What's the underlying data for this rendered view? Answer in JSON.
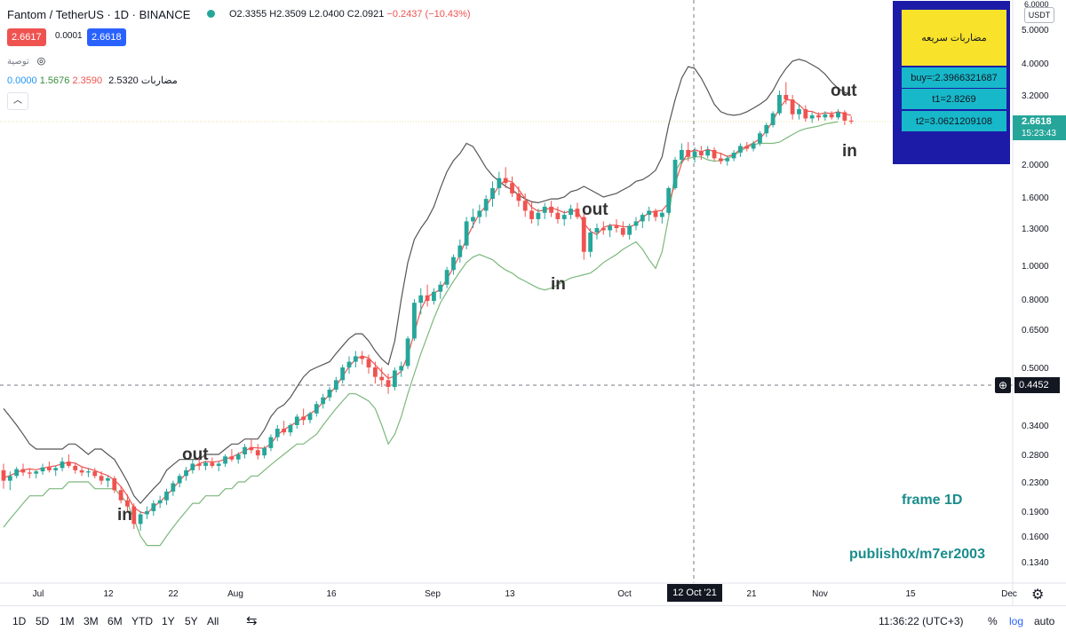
{
  "header": {
    "symbol": "Fantom / TetherUS · 1D · BINANCE",
    "ohlc_o": "O2.3355",
    "ohlc_h": "H2.3509",
    "ohlc_l": "L2.0400",
    "ohlc_c": "C2.0921",
    "ohlc_change": "−0.2437 (−10.43%)",
    "sell_price": "2.6617",
    "spread": "0.0001",
    "buy_price": "2.6618",
    "indicator1_name": "توصية",
    "indicator2_name": "مضاربات",
    "indicator2_values": [
      "2.5320",
      "2.3590",
      "1.5676",
      "0.0000"
    ]
  },
  "colors": {
    "up": "#26a69a",
    "down": "#ef5350",
    "upper_band": "#555555",
    "lower_band": "#7cb87c",
    "mid_line": "#ef5350",
    "label_text": "#1a8c8c",
    "info_bg": "#1c1ba8",
    "info_title_bg": "#f8e22a",
    "info_cell_bg": "#17b8c9",
    "buy_box": "#2962ff",
    "sell_box": "#ef5350",
    "last_price_bg": "#26a69a"
  },
  "info_table": {
    "title": "مضاربات سريعه",
    "buy": "buy=:2.3966321687",
    "t1": "t1=2.8269",
    "t2": "t2=3.0621209108"
  },
  "price_axis": {
    "currency": "USDT",
    "ticks": [
      "5.0000",
      "4.0000",
      "3.2000",
      "2.0000",
      "1.6000",
      "1.3000",
      "1.0000",
      "0.8000",
      "0.6500",
      "0.5000",
      "0.3400",
      "0.2800",
      "0.2300",
      "0.1900",
      "0.1600",
      "0.1340"
    ],
    "top_partial": "6.0000",
    "last_price": "2.6618",
    "countdown": "15:23:43",
    "crosshair_price": "0.4452"
  },
  "time_axis": {
    "ticks": [
      "Jul",
      "12",
      "22",
      "Aug",
      "16",
      "Sep",
      "13",
      "Oct",
      "21",
      "Nov",
      "15",
      "Dec"
    ],
    "crosshair_label": "12 Oct '21"
  },
  "annotations": {
    "out": "out",
    "in": "in",
    "frame": "frame 1D",
    "publish": "publish0x/m7er2003"
  },
  "bottom_toolbar": {
    "ranges": [
      "1D",
      "5D",
      "1M",
      "3M",
      "6M",
      "YTD",
      "1Y",
      "5Y",
      "All"
    ],
    "time": "11:36:22 (UTC+3)",
    "percent": "%",
    "log": "log",
    "auto": "auto"
  },
  "chart_data": {
    "type": "candlestick",
    "scale": "log",
    "ylim": [
      0.12,
      6.0
    ],
    "x_range": [
      "Jun 24",
      "Dec 01"
    ],
    "candles": [
      [
        0.25,
        0.262,
        0.22,
        0.232
      ],
      [
        0.232,
        0.248,
        0.218,
        0.24
      ],
      [
        0.24,
        0.256,
        0.236,
        0.252
      ],
      [
        0.252,
        0.262,
        0.24,
        0.246
      ],
      [
        0.246,
        0.254,
        0.236,
        0.244
      ],
      [
        0.244,
        0.25,
        0.236,
        0.248
      ],
      [
        0.248,
        0.262,
        0.242,
        0.255
      ],
      [
        0.255,
        0.266,
        0.246,
        0.25
      ],
      [
        0.25,
        0.258,
        0.24,
        0.254
      ],
      [
        0.254,
        0.274,
        0.248,
        0.266
      ],
      [
        0.266,
        0.28,
        0.254,
        0.258
      ],
      [
        0.258,
        0.264,
        0.244,
        0.25
      ],
      [
        0.25,
        0.256,
        0.24,
        0.246
      ],
      [
        0.246,
        0.254,
        0.238,
        0.248
      ],
      [
        0.248,
        0.254,
        0.236,
        0.24
      ],
      [
        0.24,
        0.248,
        0.226,
        0.232
      ],
      [
        0.232,
        0.24,
        0.222,
        0.236
      ],
      [
        0.236,
        0.24,
        0.214,
        0.218
      ],
      [
        0.218,
        0.224,
        0.2,
        0.204
      ],
      [
        0.204,
        0.212,
        0.19,
        0.196
      ],
      [
        0.196,
        0.2,
        0.168,
        0.174
      ],
      [
        0.174,
        0.19,
        0.166,
        0.186
      ],
      [
        0.186,
        0.196,
        0.18,
        0.19
      ],
      [
        0.19,
        0.204,
        0.184,
        0.2
      ],
      [
        0.2,
        0.21,
        0.194,
        0.204
      ],
      [
        0.204,
        0.22,
        0.198,
        0.216
      ],
      [
        0.216,
        0.232,
        0.21,
        0.228
      ],
      [
        0.228,
        0.244,
        0.222,
        0.24
      ],
      [
        0.24,
        0.256,
        0.232,
        0.25
      ],
      [
        0.25,
        0.27,
        0.244,
        0.262
      ],
      [
        0.262,
        0.272,
        0.25,
        0.258
      ],
      [
        0.258,
        0.268,
        0.25,
        0.264
      ],
      [
        0.264,
        0.274,
        0.254,
        0.258
      ],
      [
        0.258,
        0.266,
        0.248,
        0.262
      ],
      [
        0.262,
        0.28,
        0.256,
        0.276
      ],
      [
        0.276,
        0.29,
        0.266,
        0.27
      ],
      [
        0.27,
        0.284,
        0.262,
        0.28
      ],
      [
        0.28,
        0.3,
        0.272,
        0.294
      ],
      [
        0.294,
        0.31,
        0.282,
        0.288
      ],
      [
        0.288,
        0.3,
        0.27,
        0.278
      ],
      [
        0.278,
        0.296,
        0.272,
        0.292
      ],
      [
        0.292,
        0.32,
        0.286,
        0.314
      ],
      [
        0.314,
        0.34,
        0.306,
        0.332
      ],
      [
        0.332,
        0.35,
        0.318,
        0.324
      ],
      [
        0.324,
        0.344,
        0.316,
        0.34
      ],
      [
        0.34,
        0.366,
        0.332,
        0.36
      ],
      [
        0.36,
        0.38,
        0.34,
        0.352
      ],
      [
        0.352,
        0.372,
        0.344,
        0.368
      ],
      [
        0.368,
        0.4,
        0.36,
        0.392
      ],
      [
        0.392,
        0.42,
        0.38,
        0.41
      ],
      [
        0.41,
        0.44,
        0.4,
        0.432
      ],
      [
        0.432,
        0.47,
        0.424,
        0.46
      ],
      [
        0.46,
        0.51,
        0.45,
        0.5
      ],
      [
        0.5,
        0.54,
        0.48,
        0.52
      ],
      [
        0.52,
        0.56,
        0.5,
        0.54
      ],
      [
        0.54,
        0.56,
        0.51,
        0.53
      ],
      [
        0.53,
        0.546,
        0.48,
        0.5
      ],
      [
        0.5,
        0.52,
        0.45,
        0.47
      ],
      [
        0.47,
        0.5,
        0.44,
        0.46
      ],
      [
        0.46,
        0.48,
        0.42,
        0.44
      ],
      [
        0.44,
        0.5,
        0.43,
        0.49
      ],
      [
        0.49,
        0.52,
        0.47,
        0.505
      ],
      [
        0.505,
        0.62,
        0.495,
        0.61
      ],
      [
        0.61,
        0.8,
        0.6,
        0.78
      ],
      [
        0.78,
        0.86,
        0.72,
        0.82
      ],
      [
        0.82,
        0.88,
        0.76,
        0.79
      ],
      [
        0.79,
        0.86,
        0.77,
        0.84
      ],
      [
        0.84,
        0.9,
        0.8,
        0.88
      ],
      [
        0.88,
        0.99,
        0.86,
        0.97
      ],
      [
        0.97,
        1.08,
        0.94,
        1.06
      ],
      [
        1.06,
        1.2,
        1.02,
        1.15
      ],
      [
        1.15,
        1.4,
        1.12,
        1.36
      ],
      [
        1.36,
        1.48,
        1.3,
        1.4
      ],
      [
        1.4,
        1.52,
        1.34,
        1.46
      ],
      [
        1.46,
        1.62,
        1.4,
        1.58
      ],
      [
        1.58,
        1.78,
        1.5,
        1.7
      ],
      [
        1.7,
        1.9,
        1.62,
        1.82
      ],
      [
        1.82,
        1.96,
        1.7,
        1.76
      ],
      [
        1.76,
        1.84,
        1.6,
        1.64
      ],
      [
        1.64,
        1.72,
        1.5,
        1.56
      ],
      [
        1.56,
        1.64,
        1.4,
        1.46
      ],
      [
        1.46,
        1.56,
        1.34,
        1.38
      ],
      [
        1.38,
        1.48,
        1.32,
        1.44
      ],
      [
        1.44,
        1.54,
        1.38,
        1.5
      ],
      [
        1.5,
        1.56,
        1.4,
        1.44
      ],
      [
        1.44,
        1.5,
        1.34,
        1.38
      ],
      [
        1.38,
        1.46,
        1.32,
        1.42
      ],
      [
        1.42,
        1.52,
        1.38,
        1.48
      ],
      [
        1.48,
        1.54,
        1.38,
        1.4
      ],
      [
        1.4,
        1.44,
        1.04,
        1.1
      ],
      [
        1.1,
        1.3,
        1.06,
        1.26
      ],
      [
        1.26,
        1.34,
        1.2,
        1.3
      ],
      [
        1.3,
        1.36,
        1.24,
        1.28
      ],
      [
        1.28,
        1.34,
        1.22,
        1.32
      ],
      [
        1.32,
        1.38,
        1.26,
        1.3
      ],
      [
        1.3,
        1.36,
        1.22,
        1.24
      ],
      [
        1.24,
        1.34,
        1.2,
        1.32
      ],
      [
        1.32,
        1.4,
        1.28,
        1.36
      ],
      [
        1.36,
        1.44,
        1.3,
        1.42
      ],
      [
        1.42,
        1.5,
        1.36,
        1.46
      ],
      [
        1.46,
        1.48,
        1.36,
        1.4
      ],
      [
        1.4,
        1.46,
        1.34,
        1.44
      ],
      [
        1.44,
        1.72,
        1.42,
        1.7
      ],
      [
        1.7,
        2.1,
        1.68,
        2.06
      ],
      [
        2.06,
        2.3,
        2.0,
        2.2
      ],
      [
        2.2,
        2.32,
        2.04,
        2.1
      ],
      [
        2.1,
        2.24,
        2.02,
        2.18
      ],
      [
        2.18,
        2.26,
        2.06,
        2.12
      ],
      [
        2.12,
        2.26,
        2.08,
        2.2
      ],
      [
        2.2,
        2.24,
        2.04,
        2.08
      ],
      [
        2.08,
        2.16,
        2.0,
        2.04
      ],
      [
        2.04,
        2.12,
        1.98,
        2.08
      ],
      [
        2.08,
        2.2,
        2.04,
        2.16
      ],
      [
        2.16,
        2.3,
        2.1,
        2.26
      ],
      [
        2.26,
        2.32,
        2.18,
        2.22
      ],
      [
        2.22,
        2.34,
        2.18,
        2.3
      ],
      [
        2.3,
        2.5,
        2.26,
        2.46
      ],
      [
        2.46,
        2.64,
        2.4,
        2.6
      ],
      [
        2.6,
        2.86,
        2.56,
        2.82
      ],
      [
        2.82,
        3.3,
        2.78,
        3.2
      ],
      [
        3.2,
        3.5,
        3.0,
        3.1
      ],
      [
        3.1,
        3.2,
        2.7,
        2.8
      ],
      [
        2.8,
        3.0,
        2.7,
        2.9
      ],
      [
        2.9,
        2.98,
        2.66,
        2.72
      ],
      [
        2.72,
        2.84,
        2.64,
        2.78
      ],
      [
        2.78,
        2.84,
        2.68,
        2.74
      ],
      [
        2.74,
        2.86,
        2.68,
        2.8
      ],
      [
        2.8,
        2.86,
        2.7,
        2.74
      ],
      [
        2.74,
        2.9,
        2.7,
        2.84
      ],
      [
        2.84,
        2.88,
        2.6,
        2.68
      ],
      [
        2.68,
        2.76,
        2.62,
        2.662
      ]
    ],
    "upper_band": [
      0.38,
      0.36,
      0.34,
      0.32,
      0.3,
      0.29,
      0.29,
      0.29,
      0.29,
      0.29,
      0.3,
      0.3,
      0.29,
      0.28,
      0.29,
      0.29,
      0.28,
      0.27,
      0.25,
      0.23,
      0.21,
      0.2,
      0.21,
      0.22,
      0.23,
      0.25,
      0.26,
      0.27,
      0.27,
      0.27,
      0.27,
      0.28,
      0.28,
      0.28,
      0.29,
      0.3,
      0.3,
      0.31,
      0.31,
      0.31,
      0.33,
      0.36,
      0.38,
      0.39,
      0.41,
      0.44,
      0.47,
      0.49,
      0.5,
      0.51,
      0.52,
      0.55,
      0.58,
      0.61,
      0.63,
      0.63,
      0.6,
      0.56,
      0.53,
      0.51,
      0.6,
      0.8,
      1.02,
      1.2,
      1.3,
      1.38,
      1.5,
      1.7,
      1.9,
      2.05,
      2.15,
      2.3,
      2.25,
      2.1,
      1.95,
      1.85,
      1.78,
      1.72,
      1.68,
      1.62,
      1.58,
      1.55,
      1.54,
      1.56,
      1.58,
      1.58,
      1.6,
      1.66,
      1.68,
      1.72,
      1.68,
      1.64,
      1.6,
      1.62,
      1.64,
      1.68,
      1.72,
      1.78,
      1.8,
      1.85,
      1.92,
      2.1,
      2.6,
      3.1,
      3.6,
      3.9,
      3.85,
      3.6,
      3.3,
      3.0,
      2.85,
      2.8,
      2.78,
      2.8,
      2.85,
      2.92,
      3.0,
      3.1,
      3.3,
      3.6,
      3.85,
      4.05,
      4.1,
      4.05,
      3.95,
      3.85,
      3.7,
      3.5,
      3.35,
      3.26,
      3.2
    ],
    "lower_band": [
      0.17,
      0.18,
      0.19,
      0.2,
      0.21,
      0.21,
      0.21,
      0.22,
      0.22,
      0.22,
      0.23,
      0.23,
      0.23,
      0.23,
      0.22,
      0.22,
      0.22,
      0.22,
      0.21,
      0.2,
      0.18,
      0.16,
      0.15,
      0.15,
      0.15,
      0.16,
      0.17,
      0.18,
      0.19,
      0.2,
      0.2,
      0.21,
      0.21,
      0.21,
      0.22,
      0.22,
      0.23,
      0.23,
      0.24,
      0.24,
      0.25,
      0.26,
      0.27,
      0.28,
      0.29,
      0.3,
      0.3,
      0.31,
      0.32,
      0.34,
      0.36,
      0.38,
      0.4,
      0.42,
      0.42,
      0.41,
      0.4,
      0.38,
      0.34,
      0.3,
      0.32,
      0.36,
      0.42,
      0.48,
      0.55,
      0.62,
      0.7,
      0.78,
      0.84,
      0.9,
      0.96,
      1.02,
      1.06,
      1.08,
      1.06,
      1.04,
      1.0,
      0.97,
      0.95,
      0.92,
      0.9,
      0.88,
      0.86,
      0.85,
      0.86,
      0.88,
      0.9,
      0.92,
      0.93,
      0.94,
      0.95,
      0.98,
      1.02,
      1.05,
      1.08,
      1.12,
      1.15,
      1.18,
      1.12,
      1.04,
      0.98,
      1.1,
      1.4,
      1.9,
      2.05,
      2.08,
      2.1,
      2.1,
      2.06,
      2.04,
      2.05,
      2.08,
      2.12,
      2.18,
      2.24,
      2.28,
      2.3,
      2.3,
      2.3,
      2.32,
      2.38,
      2.44,
      2.5,
      2.54,
      2.56,
      2.58,
      2.62,
      2.64,
      2.66
    ]
  }
}
